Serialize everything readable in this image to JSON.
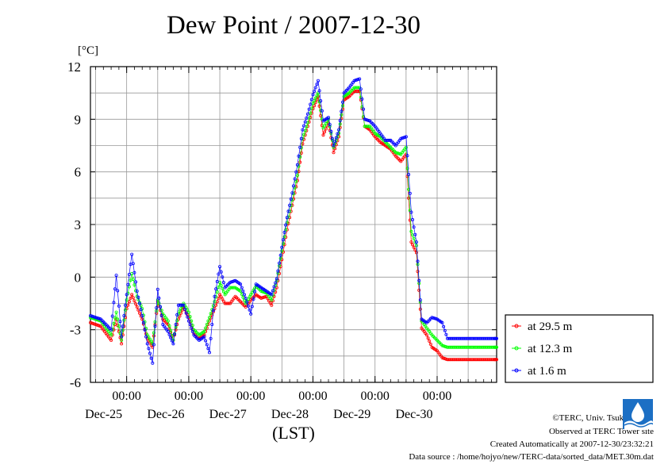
{
  "chart_data": {
    "type": "scatter",
    "title": "Dew Point / 2007-12-30",
    "unit": "[°C]",
    "xlabel": "(LST)",
    "ylim": [
      -6,
      12
    ],
    "yticks": [
      "12",
      "9",
      "6",
      "3",
      "0",
      "-3",
      "-6"
    ],
    "xlim": [
      "2007-12-24T10:00",
      "2007-12-30T23:00"
    ],
    "xticks": [
      {
        "time": "2007-12-25T00:00",
        "label": "00:00",
        "date": "Dec-25"
      },
      {
        "time": "2007-12-26T00:00",
        "label": "00:00",
        "date": "Dec-26"
      },
      {
        "time": "2007-12-27T00:00",
        "label": "00:00",
        "date": "Dec-27"
      },
      {
        "time": "2007-12-28T00:00",
        "label": "00:00",
        "date": "Dec-28"
      },
      {
        "time": "2007-12-29T00:00",
        "label": "00:00",
        "date": "Dec-29"
      },
      {
        "time": "2007-12-30T00:00",
        "label": "00:00",
        "date": "Dec-30"
      }
    ],
    "grid": true,
    "legend_position": "right",
    "x": [
      "2007-12-24T10:00",
      "2007-12-24T12:00",
      "2007-12-24T14:00",
      "2007-12-24T16:00",
      "2007-12-24T18:00",
      "2007-12-24T20:00",
      "2007-12-24T22:00",
      "2007-12-25T00:00",
      "2007-12-25T02:00",
      "2007-12-25T04:00",
      "2007-12-25T06:00",
      "2007-12-25T08:00",
      "2007-12-25T10:00",
      "2007-12-25T12:00",
      "2007-12-25T14:00",
      "2007-12-25T16:00",
      "2007-12-25T18:00",
      "2007-12-25T20:00",
      "2007-12-25T22:00",
      "2007-12-26T00:00",
      "2007-12-26T02:00",
      "2007-12-26T04:00",
      "2007-12-26T06:00",
      "2007-12-26T08:00",
      "2007-12-26T10:00",
      "2007-12-26T12:00",
      "2007-12-26T14:00",
      "2007-12-26T16:00",
      "2007-12-26T18:00",
      "2007-12-26T20:00",
      "2007-12-26T22:00",
      "2007-12-27T00:00",
      "2007-12-27T02:00",
      "2007-12-27T04:00",
      "2007-12-27T06:00",
      "2007-12-27T08:00",
      "2007-12-27T10:00",
      "2007-12-27T12:00",
      "2007-12-27T14:00",
      "2007-12-27T16:00",
      "2007-12-27T18:00",
      "2007-12-27T20:00",
      "2007-12-27T22:00",
      "2007-12-28T00:00",
      "2007-12-28T02:00",
      "2007-12-28T04:00",
      "2007-12-28T06:00",
      "2007-12-28T08:00",
      "2007-12-28T10:00",
      "2007-12-28T12:00",
      "2007-12-28T14:00",
      "2007-12-28T16:00",
      "2007-12-28T18:00",
      "2007-12-28T20:00",
      "2007-12-28T22:00",
      "2007-12-29T00:00",
      "2007-12-29T02:00",
      "2007-12-29T04:00",
      "2007-12-29T06:00",
      "2007-12-29T08:00",
      "2007-12-29T10:00",
      "2007-12-29T12:00",
      "2007-12-29T14:00",
      "2007-12-29T16:00",
      "2007-12-29T18:00",
      "2007-12-29T20:00",
      "2007-12-29T22:00",
      "2007-12-30T00:00",
      "2007-12-30T02:00",
      "2007-12-30T04:00",
      "2007-12-30T06:00",
      "2007-12-30T08:00",
      "2007-12-30T10:00",
      "2007-12-30T12:00",
      "2007-12-30T14:00",
      "2007-12-30T16:00",
      "2007-12-30T18:00",
      "2007-12-30T20:00",
      "2007-12-30T22:00",
      "2007-12-30T23:00"
    ],
    "series": [
      {
        "name": "at 29.5 m",
        "color": "#ff0000",
        "values": [
          -2.6,
          -2.7,
          -2.8,
          -3.2,
          -3.6,
          -2.4,
          -3.8,
          -1.8,
          -1.0,
          -1.7,
          -2.4,
          -3.5,
          -4.0,
          -1.4,
          -2.4,
          -2.7,
          -3.6,
          -2.4,
          -1.7,
          -2.3,
          -3.2,
          -3.5,
          -3.3,
          -2.5,
          -1.8,
          -1.0,
          -1.5,
          -1.5,
          -1.1,
          -1.4,
          -1.7,
          -1.3,
          -1.0,
          -1.2,
          -1.1,
          -1.6,
          -0.6,
          1.0,
          2.7,
          4.1,
          5.5,
          7.6,
          8.6,
          9.6,
          10.3,
          8.1,
          8.8,
          7.1,
          8.0,
          10.1,
          10.3,
          10.6,
          10.6,
          8.6,
          8.4,
          8.0,
          7.7,
          7.5,
          7.3,
          6.9,
          6.6,
          7.0,
          2.0,
          1.4,
          -2.9,
          -3.3,
          -4.0,
          -4.2,
          -4.6,
          -4.7,
          -4.7,
          -4.7,
          -4.7,
          -4.7,
          -4.7,
          -4.7,
          -4.7,
          -4.7,
          -4.7,
          -4.7
        ]
      },
      {
        "name": "at 12.3 m",
        "color": "#00ff00",
        "values": [
          -2.3,
          -2.4,
          -2.5,
          -2.9,
          -3.3,
          -2.0,
          -3.6,
          -1.3,
          0.2,
          -1.1,
          -1.8,
          -3.3,
          -3.8,
          -1.3,
          -2.1,
          -2.5,
          -3.6,
          -2.1,
          -1.5,
          -2.0,
          -3.0,
          -3.3,
          -3.1,
          -2.3,
          -1.4,
          -0.3,
          -1.0,
          -0.6,
          -0.6,
          -0.8,
          -1.5,
          -1.0,
          -0.5,
          -0.8,
          -0.9,
          -1.3,
          -0.2,
          1.5,
          3.1,
          4.4,
          5.8,
          7.9,
          8.8,
          9.9,
          10.5,
          8.5,
          9.0,
          7.4,
          8.2,
          10.3,
          10.5,
          10.8,
          10.8,
          8.6,
          8.6,
          8.2,
          8.0,
          7.7,
          7.4,
          7.1,
          7.0,
          7.4,
          2.6,
          1.8,
          -2.5,
          -2.9,
          -3.3,
          -3.6,
          -3.9,
          -4.0,
          -4.0,
          -4.0,
          -4.0,
          -4.0,
          -4.0,
          -4.0,
          -4.0,
          -4.0,
          -4.0,
          -4.0
        ]
      },
      {
        "name": "at 1.6 m",
        "color": "#0000ff",
        "values": [
          -2.2,
          -2.3,
          -2.4,
          -2.7,
          -3.0,
          0.1,
          -3.4,
          -1.0,
          1.3,
          -0.8,
          -2.2,
          -3.8,
          -4.9,
          -0.7,
          -2.7,
          -3.1,
          -3.8,
          -1.6,
          -1.6,
          -2.5,
          -3.3,
          -3.6,
          -3.4,
          -4.3,
          -1.1,
          0.6,
          -0.6,
          -0.3,
          -0.2,
          -0.4,
          -1.2,
          -2.1,
          -0.4,
          -0.6,
          -0.8,
          -1.0,
          -0.1,
          1.7,
          3.4,
          4.8,
          6.4,
          8.4,
          9.3,
          10.4,
          11.2,
          8.9,
          9.1,
          7.5,
          8.4,
          10.5,
          10.8,
          11.2,
          11.3,
          9.0,
          8.9,
          8.6,
          8.2,
          7.8,
          7.8,
          7.5,
          7.9,
          8.0,
          3.7,
          2.0,
          -2.4,
          -2.6,
          -2.3,
          -2.4,
          -2.6,
          -3.5,
          -3.5,
          -3.5,
          -3.5,
          -3.5,
          -3.5,
          -3.5,
          -3.5,
          -3.5,
          -3.5,
          -3.5
        ]
      }
    ]
  },
  "footer": {
    "copyright": "©TERC, Univ. Tsukuba",
    "observed": "Observed at TERC Tower site",
    "created": "Created Automatically at 2007-12-30/23:32:21",
    "source": "Data source : /home/hojyo/new/TERC-data/sorted_data/MET.30m.dat"
  }
}
